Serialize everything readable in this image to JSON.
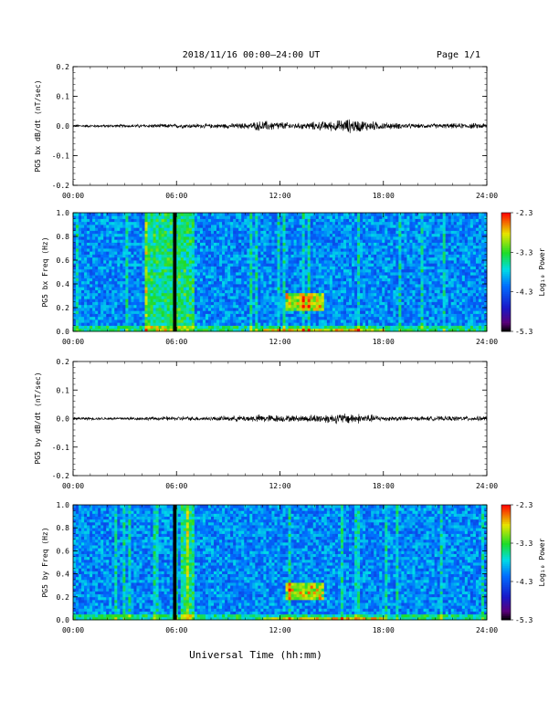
{
  "header": {
    "title": "2018/11/16  00:00–24:00 UT",
    "page": "Page 1/1"
  },
  "xaxis": {
    "title": "Universal Time (hh:mm)",
    "tick_labels": [
      "00:00",
      "06:00",
      "12:00",
      "18:00",
      "24:00"
    ],
    "ticks_hours": [
      0,
      6,
      12,
      18,
      24
    ],
    "range_hours": [
      0,
      24
    ]
  },
  "colorbar": {
    "label": "Log₁₀ Power",
    "tick_labels": [
      "-2.3",
      "-3.3",
      "-4.3",
      "-5.3"
    ],
    "range": [
      -5.3,
      -2.3
    ],
    "colormap": "rainbow (black/purple low → blue → cyan → green → yellow → red high)"
  },
  "chart_data": [
    {
      "type": "line",
      "ylabel": "PG5 bx dB/dt (nT/sec)",
      "ylim": [
        -0.2,
        0.2
      ],
      "ytick_labels": [
        "0.2",
        "0.1",
        "0.0",
        "-0.1",
        "-0.2"
      ],
      "ytick_values": [
        0.2,
        0.1,
        0.0,
        -0.1,
        -0.2
      ],
      "series": [
        {
          "x_hours": [
            0,
            2,
            4,
            6,
            8,
            10,
            11,
            12,
            13,
            14,
            15,
            16,
            17,
            18,
            20,
            22,
            24
          ],
          "envelope_amplitude": [
            0.004,
            0.004,
            0.005,
            0.006,
            0.006,
            0.008,
            0.015,
            0.012,
            0.008,
            0.012,
            0.014,
            0.02,
            0.015,
            0.01,
            0.006,
            0.007,
            0.008
          ]
        }
      ]
    },
    {
      "type": "heatmap",
      "ylabel": "PG5 bx Freq (Hz)",
      "ylim": [
        0.0,
        1.0
      ],
      "ytick_labels": [
        "1.0",
        "0.8",
        "0.6",
        "0.4",
        "0.2",
        "0.0"
      ],
      "ytick_values": [
        1.0,
        0.8,
        0.6,
        0.4,
        0.2,
        0.0
      ],
      "features": {
        "elevated_power_band_hours": [
          4.1,
          7.1
        ],
        "data_gap_hours": [
          5.8,
          6.0
        ],
        "wave_event": {
          "hours": [
            12.3,
            14.5
          ],
          "freq_hz": [
            0.18,
            0.32
          ]
        },
        "low_freq_enhancement_hours": [
          11.0,
          18.0
        ]
      }
    },
    {
      "type": "line",
      "ylabel": "PG5 by dB/dt (nT/sec)",
      "ylim": [
        -0.2,
        0.2
      ],
      "ytick_labels": [
        "0.2",
        "0.1",
        "0.0",
        "-0.1",
        "-0.2"
      ],
      "ytick_values": [
        0.2,
        0.1,
        0.0,
        -0.1,
        -0.2
      ],
      "series": [
        {
          "x_hours": [
            0,
            2,
            4,
            6,
            8,
            10,
            11,
            12,
            13,
            14,
            15,
            16,
            17,
            18,
            20,
            22,
            24
          ],
          "envelope_amplitude": [
            0.004,
            0.004,
            0.005,
            0.006,
            0.006,
            0.009,
            0.012,
            0.01,
            0.009,
            0.012,
            0.014,
            0.016,
            0.013,
            0.008,
            0.006,
            0.007,
            0.007
          ]
        }
      ]
    },
    {
      "type": "heatmap",
      "ylabel": "PG5 by Freq (Hz)",
      "ylim": [
        0.0,
        1.0
      ],
      "ytick_labels": [
        "1.0",
        "0.8",
        "0.6",
        "0.4",
        "0.2",
        "0.0"
      ],
      "ytick_values": [
        1.0,
        0.8,
        0.6,
        0.4,
        0.2,
        0.0
      ],
      "features": {
        "elevated_power_band_hours": [
          6.2,
          7.1
        ],
        "data_gap_hours": [
          5.8,
          6.0
        ],
        "wave_event": {
          "hours": [
            12.3,
            14.5
          ],
          "freq_hz": [
            0.18,
            0.32
          ]
        },
        "low_freq_enhancement_hours": [
          11.0,
          18.0
        ]
      }
    }
  ]
}
